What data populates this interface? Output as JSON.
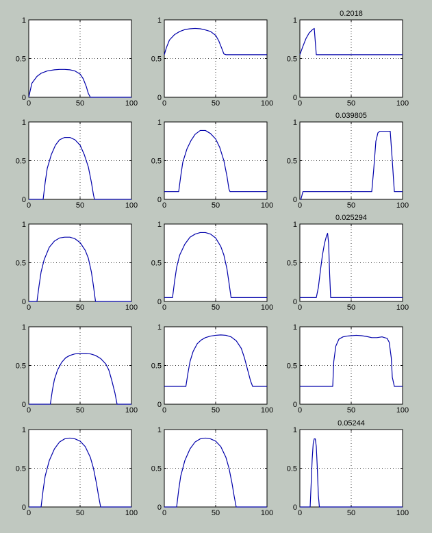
{
  "figure": {
    "background": "#c0c8c0",
    "axes_color": "#000000",
    "line_color": "#0000aa",
    "grid": "dotted",
    "rows": 5,
    "cols": 3
  },
  "chart_data": [
    {
      "type": "line",
      "title": "",
      "xlim": [
        0,
        100
      ],
      "ylim": [
        0,
        1
      ],
      "xticks": [
        "0",
        "50",
        "100"
      ],
      "yticks": [
        "0",
        "0.5",
        "1"
      ],
      "grid": true,
      "x": [
        0,
        3,
        8,
        12,
        18,
        25,
        30,
        35,
        40,
        45,
        50,
        53,
        56,
        58,
        60,
        100
      ],
      "y": [
        0,
        0.18,
        0.27,
        0.31,
        0.34,
        0.355,
        0.36,
        0.36,
        0.355,
        0.34,
        0.3,
        0.24,
        0.14,
        0.05,
        0,
        0
      ]
    },
    {
      "type": "line",
      "title": "",
      "xlim": [
        0,
        100
      ],
      "ylim": [
        0,
        1
      ],
      "xticks": [
        "0",
        "50",
        "100"
      ],
      "yticks": [
        "0",
        "0.5",
        "1"
      ],
      "grid": true,
      "x": [
        0,
        2,
        5,
        10,
        15,
        20,
        25,
        30,
        35,
        40,
        45,
        50,
        53,
        56,
        58,
        60,
        100
      ],
      "y": [
        0.55,
        0.64,
        0.74,
        0.81,
        0.85,
        0.875,
        0.885,
        0.89,
        0.885,
        0.87,
        0.85,
        0.8,
        0.73,
        0.63,
        0.56,
        0.55,
        0.55
      ]
    },
    {
      "type": "line",
      "title": "0.2018",
      "xlim": [
        0,
        100
      ],
      "ylim": [
        0,
        1
      ],
      "xticks": [
        "0",
        "50",
        "100"
      ],
      "yticks": [
        "0",
        "0.5",
        "1"
      ],
      "grid": true,
      "x": [
        0,
        3,
        6,
        9,
        12,
        14,
        15,
        16,
        100
      ],
      "y": [
        0.55,
        0.66,
        0.76,
        0.83,
        0.87,
        0.89,
        0.72,
        0.55,
        0.55
      ]
    },
    {
      "type": "line",
      "title": "",
      "xlim": [
        0,
        100
      ],
      "ylim": [
        0,
        1
      ],
      "xticks": [
        "0",
        "50",
        "100"
      ],
      "yticks": [
        "0",
        "0.5",
        "1"
      ],
      "grid": true,
      "x": [
        0,
        14,
        16,
        18,
        22,
        26,
        30,
        35,
        40,
        45,
        50,
        54,
        58,
        61,
        63,
        64,
        100
      ],
      "y": [
        0,
        0,
        0.22,
        0.4,
        0.58,
        0.7,
        0.77,
        0.8,
        0.8,
        0.77,
        0.7,
        0.58,
        0.42,
        0.22,
        0.06,
        0,
        0
      ]
    },
    {
      "type": "line",
      "title": "",
      "xlim": [
        0,
        100
      ],
      "ylim": [
        0,
        1
      ],
      "xticks": [
        "0",
        "50",
        "100"
      ],
      "yticks": [
        "0",
        "0.5",
        "1"
      ],
      "grid": true,
      "x": [
        0,
        14,
        16,
        18,
        22,
        26,
        30,
        35,
        40,
        45,
        50,
        54,
        58,
        61,
        63,
        64,
        100
      ],
      "y": [
        0.1,
        0.1,
        0.3,
        0.48,
        0.65,
        0.76,
        0.84,
        0.89,
        0.89,
        0.85,
        0.78,
        0.67,
        0.5,
        0.3,
        0.13,
        0.1,
        0.1
      ]
    },
    {
      "type": "line",
      "title": "0.039805",
      "xlim": [
        0,
        100
      ],
      "ylim": [
        0,
        1
      ],
      "xticks": [
        "0",
        "50",
        "100"
      ],
      "yticks": [
        "0",
        "0.5",
        "1"
      ],
      "grid": true,
      "x": [
        0,
        1,
        2,
        3,
        70,
        72,
        74,
        76,
        78,
        80,
        82,
        84,
        86,
        88,
        90,
        92,
        100
      ],
      "y": [
        0,
        0,
        0.05,
        0.1,
        0.1,
        0.4,
        0.75,
        0.86,
        0.88,
        0.88,
        0.88,
        0.88,
        0.88,
        0.88,
        0.5,
        0.1,
        0.1
      ]
    },
    {
      "type": "line",
      "title": "",
      "xlim": [
        0,
        100
      ],
      "ylim": [
        0,
        1
      ],
      "xticks": [
        "0",
        "50",
        "100"
      ],
      "yticks": [
        "0",
        "0.5",
        "1"
      ],
      "grid": true,
      "x": [
        0,
        8,
        10,
        12,
        15,
        20,
        25,
        30,
        35,
        40,
        45,
        50,
        55,
        58,
        61,
        63,
        65,
        100
      ],
      "y": [
        0,
        0,
        0.2,
        0.38,
        0.54,
        0.7,
        0.78,
        0.82,
        0.83,
        0.83,
        0.81,
        0.76,
        0.66,
        0.56,
        0.38,
        0.2,
        0,
        0
      ]
    },
    {
      "type": "line",
      "title": "",
      "xlim": [
        0,
        100
      ],
      "ylim": [
        0,
        1
      ],
      "xticks": [
        "0",
        "50",
        "100"
      ],
      "yticks": [
        "0",
        "0.5",
        "1"
      ],
      "grid": true,
      "x": [
        0,
        8,
        10,
        12,
        15,
        20,
        25,
        30,
        35,
        40,
        45,
        50,
        55,
        58,
        61,
        63,
        65,
        100
      ],
      "y": [
        0.05,
        0.05,
        0.26,
        0.44,
        0.6,
        0.74,
        0.83,
        0.87,
        0.89,
        0.89,
        0.87,
        0.82,
        0.71,
        0.6,
        0.42,
        0.24,
        0.05,
        0.05
      ]
    },
    {
      "type": "line",
      "title": "0.025294",
      "xlim": [
        0,
        100
      ],
      "ylim": [
        0,
        1
      ],
      "xticks": [
        "0",
        "50",
        "100"
      ],
      "yticks": [
        "0",
        "0.5",
        "1"
      ],
      "grid": true,
      "x": [
        0,
        16,
        18,
        20,
        22,
        24,
        26,
        27,
        28,
        29,
        30,
        100
      ],
      "y": [
        0.05,
        0.05,
        0.18,
        0.4,
        0.6,
        0.75,
        0.85,
        0.88,
        0.75,
        0.35,
        0.05,
        0.05
      ]
    },
    {
      "type": "line",
      "title": "",
      "xlim": [
        0,
        100
      ],
      "ylim": [
        0,
        1
      ],
      "xticks": [
        "0",
        "50",
        "100"
      ],
      "yticks": [
        "0",
        "0.5",
        "1"
      ],
      "grid": true,
      "x": [
        0,
        21,
        23,
        25,
        28,
        32,
        36,
        40,
        45,
        50,
        55,
        60,
        65,
        70,
        75,
        78,
        81,
        84,
        86,
        100
      ],
      "y": [
        0,
        0,
        0.18,
        0.32,
        0.44,
        0.54,
        0.6,
        0.63,
        0.65,
        0.655,
        0.655,
        0.65,
        0.63,
        0.59,
        0.52,
        0.44,
        0.3,
        0.14,
        0,
        0
      ]
    },
    {
      "type": "line",
      "title": "",
      "xlim": [
        0,
        100
      ],
      "ylim": [
        0,
        1
      ],
      "xticks": [
        "0",
        "50",
        "100"
      ],
      "yticks": [
        "0",
        "0.5",
        "1"
      ],
      "grid": true,
      "x": [
        0,
        21,
        23,
        25,
        28,
        32,
        36,
        40,
        45,
        50,
        55,
        60,
        65,
        70,
        75,
        78,
        81,
        84,
        86,
        100
      ],
      "y": [
        0.23,
        0.23,
        0.4,
        0.55,
        0.68,
        0.78,
        0.83,
        0.86,
        0.88,
        0.89,
        0.895,
        0.89,
        0.87,
        0.82,
        0.72,
        0.6,
        0.45,
        0.3,
        0.23,
        0.23
      ]
    },
    {
      "type": "line",
      "title": "",
      "xlim": [
        0,
        100
      ],
      "ylim": [
        0,
        1
      ],
      "xticks": [
        "0",
        "50",
        "100"
      ],
      "yticks": [
        "0",
        "0.5",
        "1"
      ],
      "grid": true,
      "x": [
        0,
        32,
        33,
        35,
        38,
        42,
        46,
        50,
        55,
        60,
        65,
        70,
        75,
        80,
        85,
        87,
        89,
        90,
        92,
        100
      ],
      "y": [
        0.23,
        0.23,
        0.55,
        0.75,
        0.84,
        0.87,
        0.88,
        0.885,
        0.89,
        0.885,
        0.875,
        0.86,
        0.86,
        0.87,
        0.85,
        0.8,
        0.6,
        0.35,
        0.23,
        0.23
      ]
    },
    {
      "type": "line",
      "title": "",
      "xlim": [
        0,
        100
      ],
      "ylim": [
        0,
        1
      ],
      "xticks": [
        "0",
        "50",
        "100"
      ],
      "yticks": [
        "0",
        "0.5",
        "1"
      ],
      "grid": true,
      "x": [
        0,
        12,
        14,
        16,
        20,
        25,
        30,
        35,
        40,
        45,
        50,
        55,
        60,
        63,
        66,
        68,
        70,
        100
      ],
      "y": [
        0,
        0,
        0.22,
        0.4,
        0.6,
        0.75,
        0.84,
        0.88,
        0.89,
        0.88,
        0.85,
        0.78,
        0.64,
        0.5,
        0.3,
        0.14,
        0,
        0
      ]
    },
    {
      "type": "line",
      "title": "",
      "xlim": [
        0,
        100
      ],
      "ylim": [
        0,
        1
      ],
      "xticks": [
        "0",
        "50",
        "100"
      ],
      "yticks": [
        "0",
        "0.5",
        "1"
      ],
      "grid": true,
      "x": [
        0,
        12,
        14,
        16,
        20,
        25,
        30,
        35,
        40,
        45,
        50,
        55,
        60,
        63,
        66,
        68,
        70,
        100
      ],
      "y": [
        0,
        0,
        0.22,
        0.4,
        0.6,
        0.75,
        0.84,
        0.88,
        0.89,
        0.88,
        0.85,
        0.78,
        0.64,
        0.5,
        0.3,
        0.14,
        0,
        0
      ]
    },
    {
      "type": "line",
      "title": "0.05244",
      "xlim": [
        0,
        100
      ],
      "ylim": [
        0,
        1
      ],
      "xticks": [
        "0",
        "50",
        "100"
      ],
      "yticks": [
        "0",
        "0.5",
        "1"
      ],
      "grid": true,
      "x": [
        0,
        10,
        11,
        12,
        13,
        14,
        15,
        16,
        17,
        18,
        19,
        100
      ],
      "y": [
        0,
        0,
        0.3,
        0.62,
        0.82,
        0.88,
        0.88,
        0.78,
        0.5,
        0.15,
        0,
        0
      ]
    }
  ]
}
